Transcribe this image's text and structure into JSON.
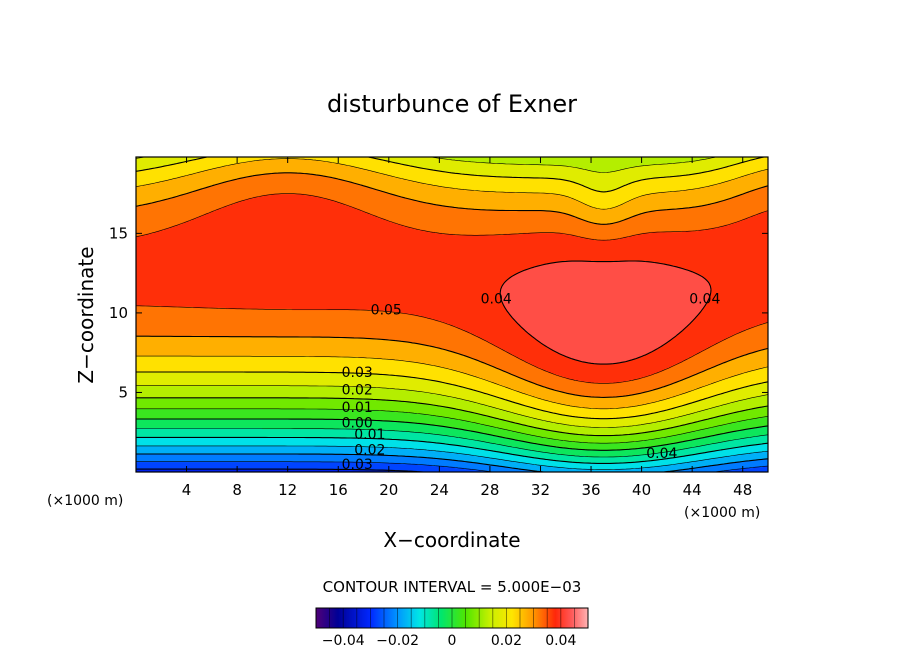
{
  "chart_data": {
    "type": "contour",
    "title": "disturbunce of Exner",
    "xlabel": "X−coordinate",
    "ylabel": "Z−coordinate",
    "x_unit_note": "(×1000 m)",
    "y_unit_note": "(×1000 m)",
    "xlim": [
      0,
      50
    ],
    "ylim": [
      0,
      19.8
    ],
    "x_ticks": [
      4,
      8,
      12,
      16,
      20,
      24,
      28,
      32,
      36,
      40,
      44,
      48
    ],
    "y_ticks": [
      5,
      10,
      15
    ],
    "contour_interval_text": "CONTOUR INTERVAL = 5.000E−03",
    "contour_interval": 0.005,
    "fill_range": [
      -0.05,
      0.05
    ],
    "saturation_color": "#ffffff",
    "contour_labels": [
      {
        "text": "0.05",
        "x": 19.8,
        "z": 10.2
      },
      {
        "text": "0.04",
        "x": 28.5,
        "z": 10.9
      },
      {
        "text": "0.04",
        "x": 45.0,
        "z": 10.9
      },
      {
        "text": "0.03",
        "x": 17.5,
        "z": 6.3
      },
      {
        "text": "0.02",
        "x": 17.5,
        "z": 5.2
      },
      {
        "text": "0.01",
        "x": 17.5,
        "z": 4.1
      },
      {
        "text": "0.00",
        "x": 17.5,
        "z": 3.1
      },
      {
        "text": "0.01",
        "x": 18.5,
        "z": 2.4
      },
      {
        "text": "0.02",
        "x": 18.5,
        "z": 1.4
      },
      {
        "text": "0.03",
        "x": 17.5,
        "z": 0.5
      },
      {
        "text": "0.04",
        "x": 41.6,
        "z": 1.2
      }
    ],
    "colorbar": {
      "min": -0.05,
      "max": 0.05,
      "tick_values": [
        -0.04,
        -0.02,
        0,
        0.02,
        0.04
      ],
      "tick_labels": [
        "−0.04",
        "−0.02",
        "0",
        "0.02",
        "0.04"
      ]
    }
  }
}
